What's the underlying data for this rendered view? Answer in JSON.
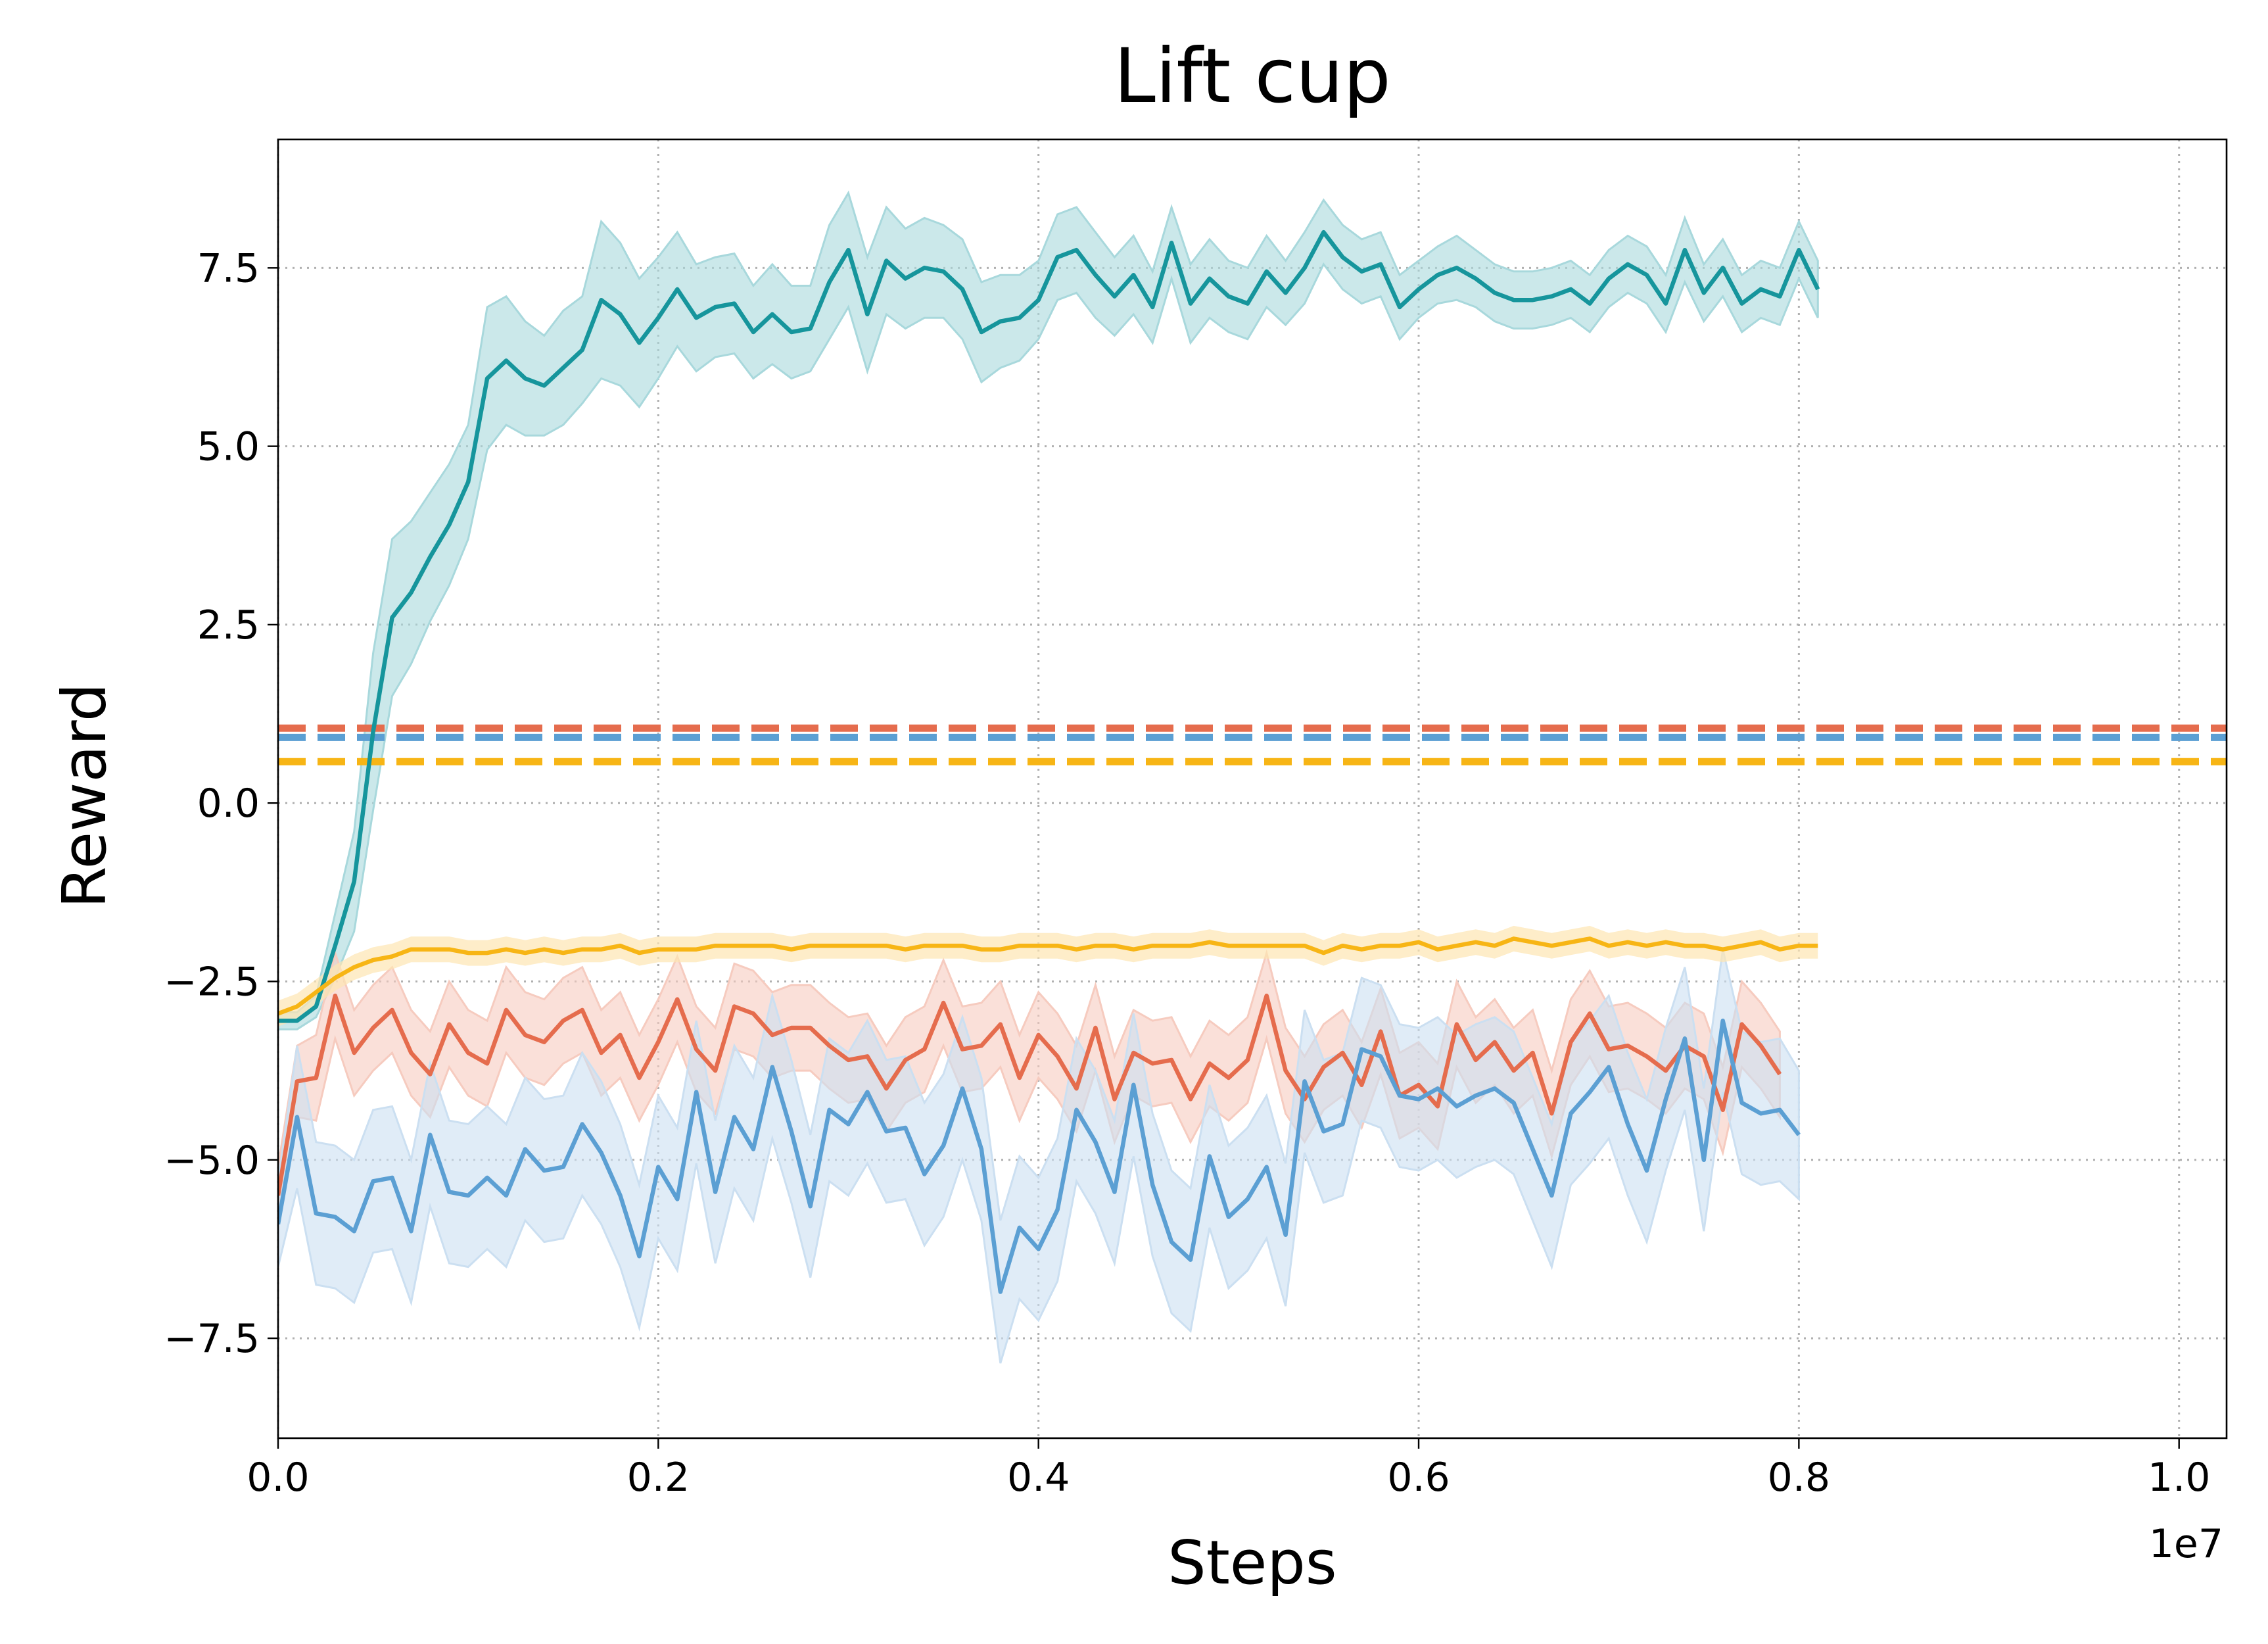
{
  "chart_data": {
    "type": "line",
    "title": "Lift cup",
    "xlabel": "Steps",
    "ylabel": "Reward",
    "x_offset_text": "1e7",
    "xlim": [
      0,
      10250000
    ],
    "ylim": [
      -8.9,
      9.3
    ],
    "x_ticks": [
      0,
      2000000,
      4000000,
      6000000,
      8000000,
      10000000
    ],
    "x_tick_labels": [
      "0.0",
      "0.2",
      "0.4",
      "0.6",
      "0.8",
      "1.0"
    ],
    "y_ticks": [
      -7.5,
      -5.0,
      -2.5,
      0.0,
      2.5,
      5.0,
      7.5
    ],
    "y_tick_labels": [
      "−7.5",
      "−5.0",
      "−2.5",
      "0.0",
      "2.5",
      "5.0",
      "7.5"
    ],
    "grid": true,
    "legend": "none",
    "x_start": 0,
    "x_step": 100000,
    "series": [
      {
        "color": "#16959c",
        "band_color": "#a8d8dc",
        "values": [
          -3.05,
          -3.05,
          -2.85,
          -2.0,
          -1.1,
          1.0,
          2.6,
          2.95,
          3.45,
          3.9,
          4.5,
          5.95,
          6.2,
          5.95,
          5.85,
          6.1,
          6.35,
          7.05,
          6.85,
          6.45,
          6.8,
          7.2,
          6.8,
          6.95,
          7.0,
          6.6,
          6.85,
          6.6,
          6.65,
          7.3,
          7.75,
          6.85,
          7.6,
          7.35,
          7.5,
          7.45,
          7.2,
          6.6,
          6.75,
          6.8,
          7.05,
          7.65,
          7.75,
          7.4,
          7.1,
          7.4,
          6.95,
          7.85,
          7.0,
          7.35,
          7.1,
          7.0,
          7.45,
          7.15,
          7.5,
          8.0,
          7.65,
          7.45,
          7.55,
          6.95,
          7.2,
          7.4,
          7.5,
          7.35,
          7.15,
          7.05,
          7.05,
          7.1,
          7.2,
          7.0,
          7.35,
          7.55,
          7.4,
          7.0,
          7.75,
          7.15,
          7.5,
          7.0,
          7.2,
          7.1,
          7.75,
          7.2
        ],
        "band_half_width": [
          0.12,
          0.12,
          0.15,
          0.45,
          0.7,
          1.1,
          1.1,
          1.0,
          0.9,
          0.85,
          0.8,
          1.0,
          0.9,
          0.8,
          0.7,
          0.8,
          0.75,
          1.1,
          1.0,
          0.9,
          0.85,
          0.8,
          0.75,
          0.7,
          0.7,
          0.65,
          0.7,
          0.65,
          0.6,
          0.8,
          0.8,
          0.8,
          0.75,
          0.7,
          0.7,
          0.65,
          0.7,
          0.7,
          0.65,
          0.6,
          0.55,
          0.6,
          0.6,
          0.6,
          0.55,
          0.55,
          0.5,
          0.5,
          0.55,
          0.55,
          0.5,
          0.5,
          0.5,
          0.45,
          0.5,
          0.45,
          0.45,
          0.45,
          0.45,
          0.45,
          0.4,
          0.4,
          0.45,
          0.4,
          0.4,
          0.4,
          0.4,
          0.4,
          0.4,
          0.4,
          0.4,
          0.4,
          0.4,
          0.4,
          0.45,
          0.4,
          0.4,
          0.4,
          0.4,
          0.4,
          0.4,
          0.4
        ]
      },
      {
        "color": "#f7b515",
        "band_color": "#fde6b2",
        "values": [
          -2.95,
          -2.85,
          -2.65,
          -2.45,
          -2.3,
          -2.2,
          -2.15,
          -2.05,
          -2.05,
          -2.05,
          -2.1,
          -2.1,
          -2.05,
          -2.1,
          -2.05,
          -2.1,
          -2.05,
          -2.05,
          -2.0,
          -2.1,
          -2.05,
          -2.05,
          -2.05,
          -2.0,
          -2.0,
          -2.0,
          -2.0,
          -2.05,
          -2.0,
          -2.0,
          -2.0,
          -2.0,
          -2.0,
          -2.05,
          -2.0,
          -2.0,
          -2.0,
          -2.05,
          -2.05,
          -2.0,
          -2.0,
          -2.0,
          -2.05,
          -2.0,
          -2.0,
          -2.05,
          -2.0,
          -2.0,
          -2.0,
          -1.95,
          -2.0,
          -2.0,
          -2.0,
          -2.0,
          -2.0,
          -2.1,
          -2.0,
          -2.05,
          -2.0,
          -2.0,
          -1.95,
          -2.05,
          -2.0,
          -1.95,
          -2.0,
          -1.9,
          -1.95,
          -2.0,
          -1.95,
          -1.9,
          -2.0,
          -1.95,
          -2.0,
          -1.95,
          -2.0,
          -2.0,
          -2.05,
          -2.0,
          -1.95,
          -2.05,
          -2.0,
          -2.0
        ]
      },
      {
        "color": "#e56c4d",
        "band_color": "#f6cbbf",
        "values": [
          -5.5,
          -3.9,
          -3.85,
          -2.7,
          -3.5,
          -3.15,
          -2.9,
          -3.5,
          -3.8,
          -3.1,
          -3.5,
          -3.65,
          -2.9,
          -3.25,
          -3.35,
          -3.05,
          -2.9,
          -3.5,
          -3.25,
          -3.85,
          -3.35,
          -2.75,
          -3.45,
          -3.75,
          -2.85,
          -2.95,
          -3.25,
          -3.15,
          -3.15,
          -3.4,
          -3.6,
          -3.55,
          -4.0,
          -3.6,
          -3.45,
          -2.8,
          -3.45,
          -3.4,
          -3.1,
          -3.85,
          -3.25,
          -3.55,
          -4.0,
          -3.15,
          -4.15,
          -3.5,
          -3.65,
          -3.6,
          -4.15,
          -3.65,
          -3.85,
          -3.6,
          -2.7,
          -3.75,
          -4.15,
          -3.7,
          -3.5,
          -3.95,
          -3.2,
          -4.1,
          -3.95,
          -4.25,
          -3.1,
          -3.6,
          -3.35,
          -3.75,
          -3.5,
          -4.35,
          -3.35,
          -2.95,
          -3.45,
          -3.4,
          -3.55,
          -3.75,
          -3.4,
          -3.55,
          -4.3,
          -3.1,
          -3.4,
          -3.8
        ],
        "band_half_width": [
          0.4,
          0.5,
          0.6,
          0.6,
          0.6,
          0.6,
          0.6,
          0.6,
          0.6,
          0.6,
          0.6,
          0.6,
          0.6,
          0.6,
          0.6,
          0.6,
          0.6,
          0.6,
          0.6,
          0.6,
          0.6,
          0.6,
          0.6,
          0.6,
          0.6,
          0.6,
          0.6,
          0.6,
          0.6,
          0.6,
          0.6,
          0.6,
          0.6,
          0.6,
          0.6,
          0.6,
          0.6,
          0.6,
          0.6,
          0.6,
          0.6,
          0.6,
          0.6,
          0.6,
          0.6,
          0.6,
          0.6,
          0.6,
          0.6,
          0.6,
          0.6,
          0.6,
          0.6,
          0.6,
          0.6,
          0.6,
          0.6,
          0.6,
          0.6,
          0.6,
          0.6,
          0.6,
          0.6,
          0.6,
          0.6,
          0.6,
          0.6,
          0.6,
          0.6,
          0.6,
          0.6,
          0.6,
          0.6,
          0.6,
          0.6,
          0.6,
          0.6,
          0.6,
          0.6,
          0.6
        ]
      },
      {
        "color": "#5b9fd3",
        "band_color": "#cbdff1",
        "values": [
          -5.9,
          -4.4,
          -5.75,
          -5.8,
          -6.0,
          -5.3,
          -5.25,
          -6.0,
          -4.65,
          -5.45,
          -5.5,
          -5.25,
          -5.5,
          -4.85,
          -5.15,
          -5.1,
          -4.5,
          -4.9,
          -5.5,
          -6.35,
          -5.1,
          -5.55,
          -4.05,
          -5.45,
          -4.4,
          -4.85,
          -3.7,
          -4.6,
          -5.65,
          -4.3,
          -4.5,
          -4.05,
          -4.6,
          -4.55,
          -5.2,
          -4.8,
          -4.0,
          -4.85,
          -6.85,
          -5.95,
          -6.25,
          -5.7,
          -4.3,
          -4.75,
          -5.45,
          -3.95,
          -5.35,
          -6.15,
          -6.4,
          -4.95,
          -5.8,
          -5.55,
          -5.1,
          -6.05,
          -3.9,
          -4.6,
          -4.5,
          -3.45,
          -3.55,
          -4.1,
          -4.15,
          -4.0,
          -4.25,
          -4.1,
          -4.0,
          -4.2,
          -4.85,
          -5.5,
          -4.35,
          -4.05,
          -3.7,
          -4.5,
          -5.15,
          -4.15,
          -3.3,
          -5.0,
          -3.05,
          -4.2,
          -4.35,
          -4.3,
          -4.65
        ],
        "band_half_width": [
          0.6,
          1.0,
          1.0,
          1.0,
          1.0,
          1.0,
          1.0,
          1.0,
          1.0,
          1.0,
          1.0,
          1.0,
          1.0,
          1.0,
          1.0,
          1.0,
          1.0,
          1.0,
          1.0,
          1.0,
          1.0,
          1.0,
          1.0,
          1.0,
          1.0,
          1.0,
          1.0,
          1.0,
          1.0,
          1.0,
          1.0,
          1.0,
          1.0,
          1.0,
          1.0,
          1.0,
          1.0,
          1.0,
          1.0,
          1.0,
          1.0,
          1.0,
          1.0,
          1.0,
          1.0,
          1.0,
          1.0,
          1.0,
          1.0,
          1.0,
          1.0,
          1.0,
          1.0,
          1.0,
          1.0,
          1.0,
          1.0,
          1.0,
          1.0,
          1.0,
          1.0,
          1.0,
          1.0,
          1.0,
          1.0,
          1.0,
          1.0,
          1.0,
          1.0,
          1.0,
          1.0,
          1.0,
          1.0,
          1.0,
          1.0,
          1.0,
          1.0,
          1.0,
          1.0,
          1.0,
          0.9
        ]
      }
    ],
    "reference_lines": [
      {
        "color": "#e56c4d",
        "y": 1.05
      },
      {
        "color": "#5b9fd3",
        "y": 0.92
      },
      {
        "color": "#f7b515",
        "y": 0.58
      }
    ]
  }
}
